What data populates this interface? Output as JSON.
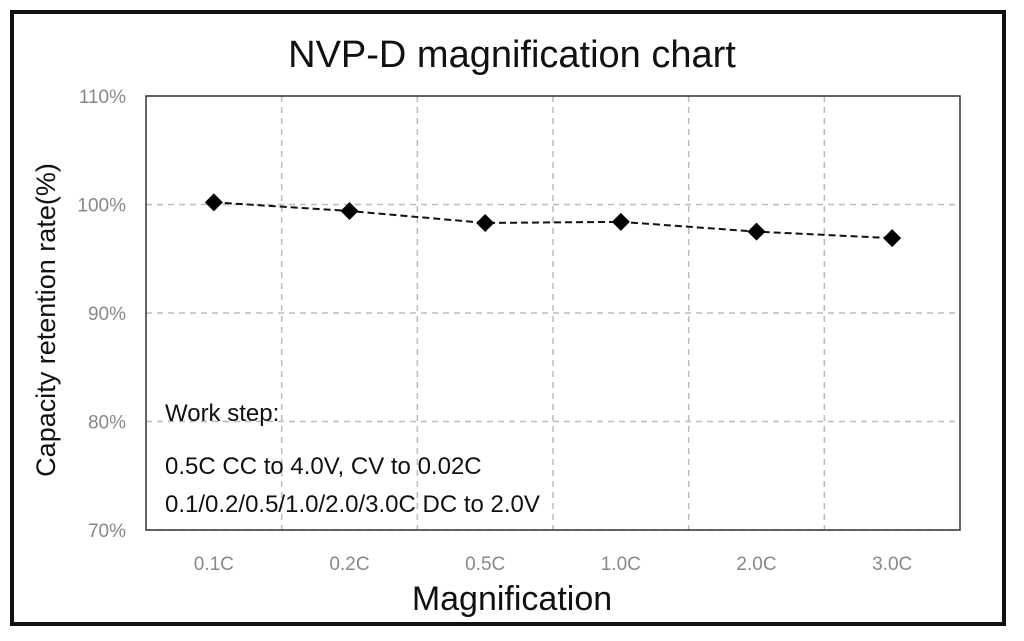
{
  "chart_data": {
    "type": "line",
    "title": "NVP-D magnification chart",
    "xlabel": "Magnification",
    "ylabel": "Capacity retention rate(%)",
    "categories": [
      "0.1C",
      "0.2C",
      "0.5C",
      "1.0C",
      "2.0C",
      "3.0C"
    ],
    "series": [
      {
        "values": [
          100.2,
          99.4,
          98.3,
          98.4,
          97.5,
          96.9
        ]
      }
    ],
    "ylim": [
      70,
      110
    ],
    "yticks": [
      "70%",
      "80%",
      "90%",
      "100%",
      "110%"
    ],
    "grid": true,
    "line_style": "dashed",
    "marker": "diamond",
    "colors": {
      "line": "#111111",
      "marker": "#000000",
      "grid": "#bbbbbb",
      "tick": "#888888"
    },
    "annotation": {
      "heading": "Work step:",
      "line1": "0.5C CC to 4.0V, CV to 0.02C",
      "line2": "0.1/0.2/0.5/1.0/2.0/3.0C DC to 2.0V"
    }
  }
}
